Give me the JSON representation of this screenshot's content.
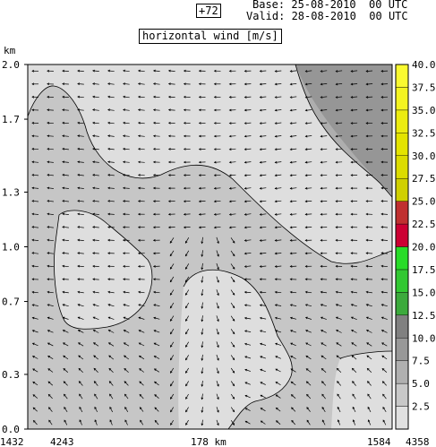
{
  "header": {
    "lead_time": "+72",
    "base": "Base: 25-08-2010  00 UTC",
    "valid": "Valid: 28-08-2010  00 UTC"
  },
  "chart_data": {
    "type": "heatmap",
    "title": "horizontal wind [m/s]",
    "ylabel": "km",
    "y_ticks": [
      "0.0",
      "0.3",
      "0.7",
      "1.0",
      "1.3",
      "1.7",
      "2.0"
    ],
    "ylim": [
      0,
      2.0
    ],
    "x_labels": {
      "left_outer": "1432",
      "left_inner": "4243",
      "center": "178 km",
      "right_inner": "1584",
      "right_outer": "4358"
    },
    "colorbar": {
      "levels": [
        "2.5",
        "5.0",
        "7.5",
        "10.0",
        "12.5",
        "15.0",
        "17.5",
        "20.0",
        "22.5",
        "25.0",
        "27.5",
        "30.0",
        "32.5",
        "35.0",
        "37.5",
        "40.0"
      ],
      "colors": [
        "#e0e0e0",
        "#c8c8c8",
        "#b0b0b0",
        "#989898",
        "#808080",
        "#3caa3c",
        "#32c832",
        "#28dc28",
        "#cc0033",
        "#c03030",
        "#d0d000",
        "#dcdc00",
        "#e4e400",
        "#ecec10",
        "#f4f420",
        "#fafa30"
      ]
    },
    "wind_regions": [
      {
        "name": "below-5",
        "range": "2.5-5.0",
        "color": "#dedede"
      },
      {
        "name": "5-7.5",
        "range": "5.0-7.5",
        "color": "#c6c6c6"
      },
      {
        "name": "7.5-10",
        "range": "7.5-10.0",
        "color": "#aeaeae"
      },
      {
        "name": "10-12.5",
        "range": "10.0-12.5",
        "color": "#969696"
      }
    ],
    "grid": false
  },
  "colors": {
    "arrow": "#000000",
    "frame": "#000000"
  }
}
